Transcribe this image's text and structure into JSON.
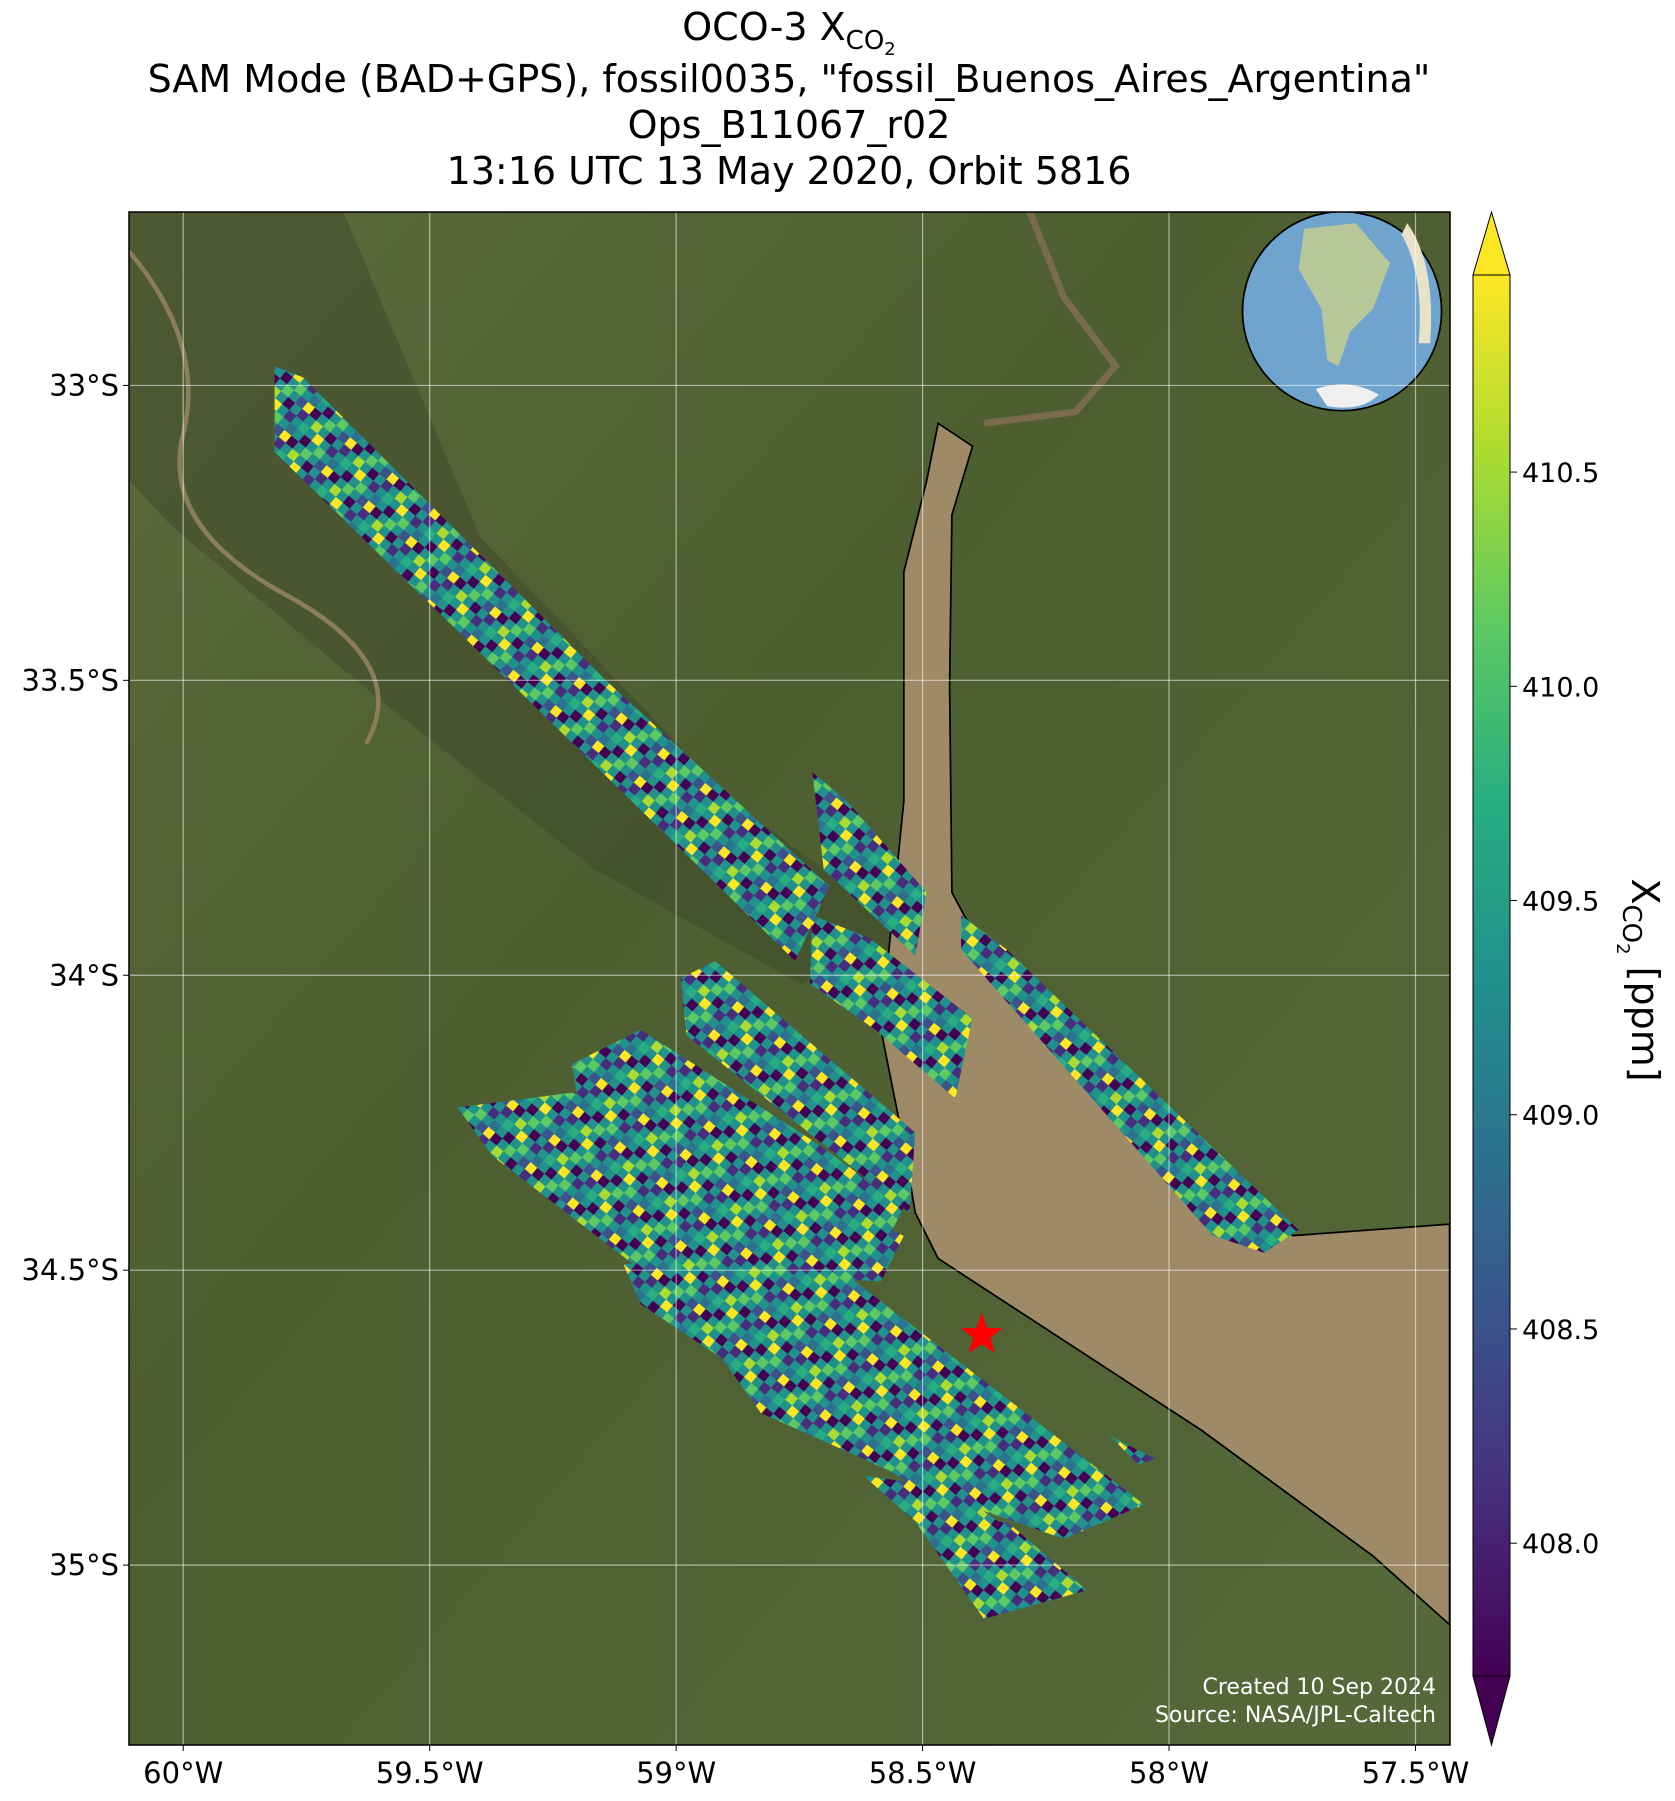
{
  "chart_data": {
    "type": "map",
    "title": {
      "prefix": "OCO-3 X",
      "sub": "CO",
      "subsub": "2"
    },
    "subtitle_lines": [
      "SAM Mode (BAD+GPS), fossil0035, \"fossil_Buenos_Aires_Argentina\"",
      "Ops_B11067_r02",
      "13:16 UTC 13 May 2020, Orbit 5816"
    ],
    "xlim": [
      -60.11,
      -57.43
    ],
    "ylim": [
      -35.305,
      -32.706
    ],
    "xticks": [
      {
        "value": -60,
        "label": "60°W"
      },
      {
        "value": -59.5,
        "label": "59.5°W"
      },
      {
        "value": -59,
        "label": "59°W"
      },
      {
        "value": -58.5,
        "label": "58.5°W"
      },
      {
        "value": -58,
        "label": "58°W"
      },
      {
        "value": -57.5,
        "label": "57.5°W"
      }
    ],
    "yticks": [
      {
        "value": -33,
        "label": "33°S"
      },
      {
        "value": -33.5,
        "label": "33.5°S"
      },
      {
        "value": -34,
        "label": "34°S"
      },
      {
        "value": -34.5,
        "label": "34.5°S"
      },
      {
        "value": -35,
        "label": "35°S"
      }
    ],
    "grid": true,
    "site": {
      "lon": -58.38,
      "lat": -34.61,
      "color": "#ff0000"
    },
    "colorbar": {
      "label": {
        "prefix": "X",
        "sub": "CO",
        "subsub": "2",
        "suffix": " [ppm]"
      },
      "lim": [
        407.69,
        410.96
      ],
      "ticks": [
        {
          "value": 408,
          "label": "408.0"
        },
        {
          "value": 408.5,
          "label": "408.5"
        },
        {
          "value": 409,
          "label": "409.0"
        },
        {
          "value": 409.5,
          "label": "409.5"
        },
        {
          "value": 410,
          "label": "410.0"
        },
        {
          "value": 410.5,
          "label": "410.5"
        }
      ],
      "colors": [
        "#440154",
        "#472d7b",
        "#3b528b",
        "#2c728e",
        "#21918c",
        "#28ae80",
        "#5ec962",
        "#addc30",
        "#fde725"
      ]
    },
    "credits": [
      "Created 10 Sep 2024",
      "Source: NASA/JPL-Caltech"
    ]
  }
}
